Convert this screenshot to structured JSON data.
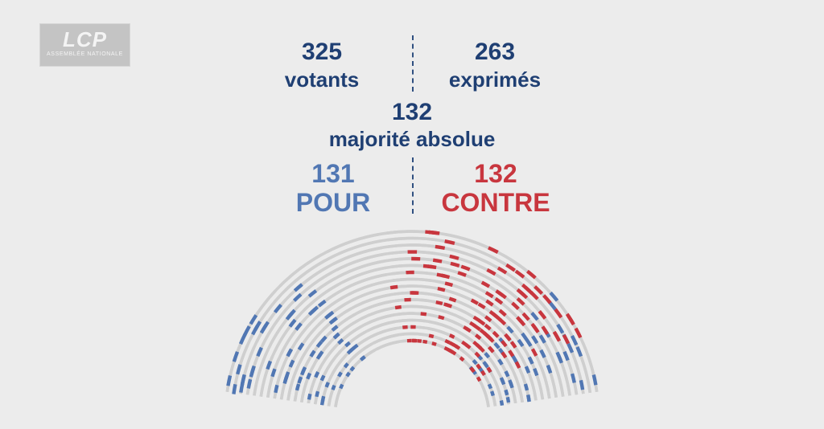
{
  "logo": {
    "main": "LCP",
    "sub": "Assemblée nationale"
  },
  "votants": {
    "value": "325",
    "label": "votants"
  },
  "exprimes": {
    "value": "263",
    "label": "exprimés"
  },
  "majorite": {
    "value": "132",
    "label": "majorité absolue"
  },
  "pour": {
    "value": "131",
    "label": "POUR"
  },
  "contre": {
    "value": "132",
    "label": "CONTRE"
  },
  "colors": {
    "pour": "#5177b3",
    "contre": "#c8363e",
    "empty": "#cfcfcf",
    "text": "#1f3f73",
    "background": "#ececec"
  },
  "hemicycle": {
    "pour_seats": 131,
    "contre_seats": 132
  }
}
